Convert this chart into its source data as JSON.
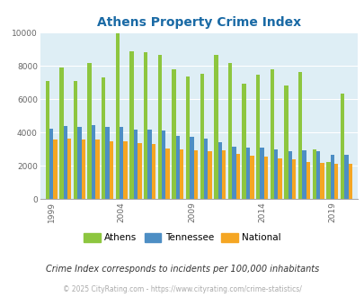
{
  "title": "Athens Property Crime Index",
  "subtitle": "Crime Index corresponds to incidents per 100,000 inhabitants",
  "copyright": "© 2025 CityRating.com - https://www.cityrating.com/crime-statistics/",
  "years": [
    1999,
    2000,
    2001,
    2002,
    2003,
    2004,
    2005,
    2006,
    2007,
    2008,
    2009,
    2010,
    2011,
    2012,
    2013,
    2014,
    2015,
    2016,
    2017,
    2018,
    2019,
    2020
  ],
  "athens": [
    7100,
    7900,
    7100,
    8200,
    7300,
    9950,
    8900,
    8850,
    8650,
    7800,
    7350,
    7550,
    8650,
    8150,
    6950,
    7450,
    7800,
    6850,
    7650,
    3000,
    2250,
    6350
  ],
  "tennessee": [
    4200,
    4400,
    4350,
    4450,
    4350,
    4350,
    4150,
    4150,
    4100,
    3800,
    3750,
    3650,
    3400,
    3150,
    3100,
    3100,
    3000,
    2850,
    2950,
    2900,
    2650,
    2650
  ],
  "national": [
    3600,
    3650,
    3600,
    3550,
    3450,
    3450,
    3350,
    3300,
    3050,
    3000,
    2950,
    2850,
    2950,
    2700,
    2600,
    2550,
    2450,
    2400,
    2250,
    2150,
    2100,
    2100
  ],
  "colors": {
    "athens": "#8dc63f",
    "tennessee": "#4d8ec4",
    "national": "#f5a623"
  },
  "ylim": [
    0,
    10000
  ],
  "yticks": [
    0,
    2000,
    4000,
    6000,
    8000,
    10000
  ],
  "xtick_years": [
    1999,
    2004,
    2009,
    2014,
    2019
  ],
  "background_color": "#deeef5",
  "title_color": "#1a6aa5",
  "subtitle_color": "#333333",
  "copyright_color": "#aaaaaa",
  "bar_width": 0.28,
  "legend_labels": [
    "Athens",
    "Tennessee",
    "National"
  ]
}
